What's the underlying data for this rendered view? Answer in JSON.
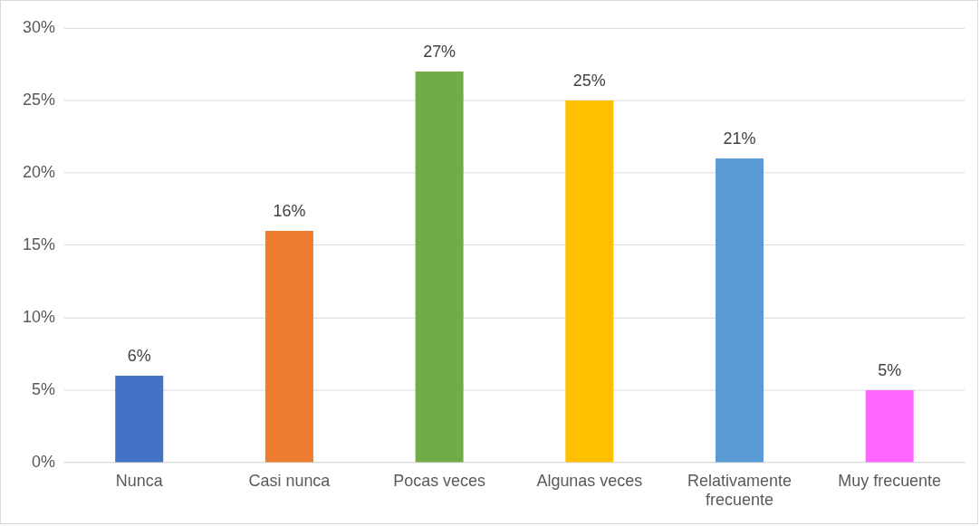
{
  "chart_data": {
    "type": "bar",
    "categories": [
      "Nunca",
      "Casi nunca",
      "Pocas veces",
      "Algunas veces",
      "Relativamente frecuente",
      "Muy frecuente"
    ],
    "values": [
      6,
      16,
      27,
      25,
      21,
      5
    ],
    "colors": [
      "#4472c4",
      "#ed7d31",
      "#70ad47",
      "#ffc000",
      "#5b9bd5",
      "#ff66ff"
    ],
    "ylim": [
      0,
      30
    ],
    "yticks": [
      {
        "value": 0,
        "label": "0%"
      },
      {
        "value": 5,
        "label": "5%"
      },
      {
        "value": 10,
        "label": "10%"
      },
      {
        "value": 15,
        "label": "15%"
      },
      {
        "value": 20,
        "label": "20%"
      },
      {
        "value": 25,
        "label": "25%"
      },
      {
        "value": 30,
        "label": "30%"
      }
    ],
    "value_labels": [
      "6%",
      "16%",
      "27%",
      "25%",
      "21%",
      "5%"
    ],
    "grid": "y"
  }
}
